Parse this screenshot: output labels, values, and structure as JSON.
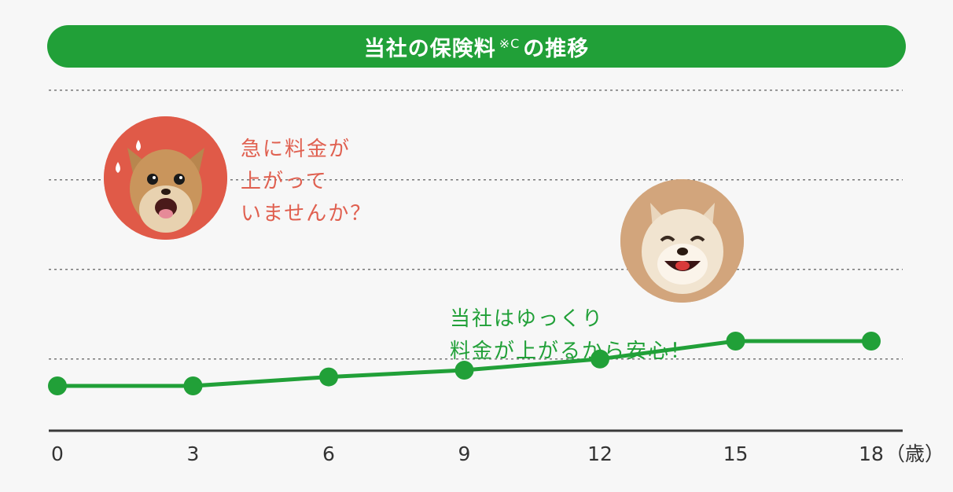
{
  "header": {
    "title_main": "当社の保険料",
    "title_note": "※C",
    "title_end": "の推移"
  },
  "callouts": {
    "worried_line1": "急に料金が",
    "worried_line2": "上がって",
    "worried_line3": "いませんか？",
    "happy_line1": "当社はゆっくり",
    "happy_line2": "料金が上がるから安心！"
  },
  "photos": {
    "worried": "worried-chihuahua-photo",
    "happy": "smiling-dog-photo"
  },
  "colors": {
    "accent": "#21a038",
    "warning": "#e06050",
    "axis": "#3a3a3a",
    "grid": "#777777",
    "background": "#f7f7f7"
  },
  "chart_data": {
    "type": "line",
    "x": [
      0,
      3,
      6,
      9,
      12,
      15,
      18
    ],
    "x_tick_labels": [
      "0",
      "3",
      "6",
      "9",
      "12",
      "15",
      "18"
    ],
    "x_unit": "（歳）",
    "values": [
      1.0,
      1.0,
      1.2,
      1.35,
      1.6,
      2.0,
      2.0
    ],
    "ylim": [
      0,
      8
    ],
    "gridlines_y": [
      1.6,
      3.6,
      5.6,
      7.6
    ],
    "grid": true,
    "grid_style": "dotted",
    "y_axis_visible": false,
    "legend": "none"
  }
}
